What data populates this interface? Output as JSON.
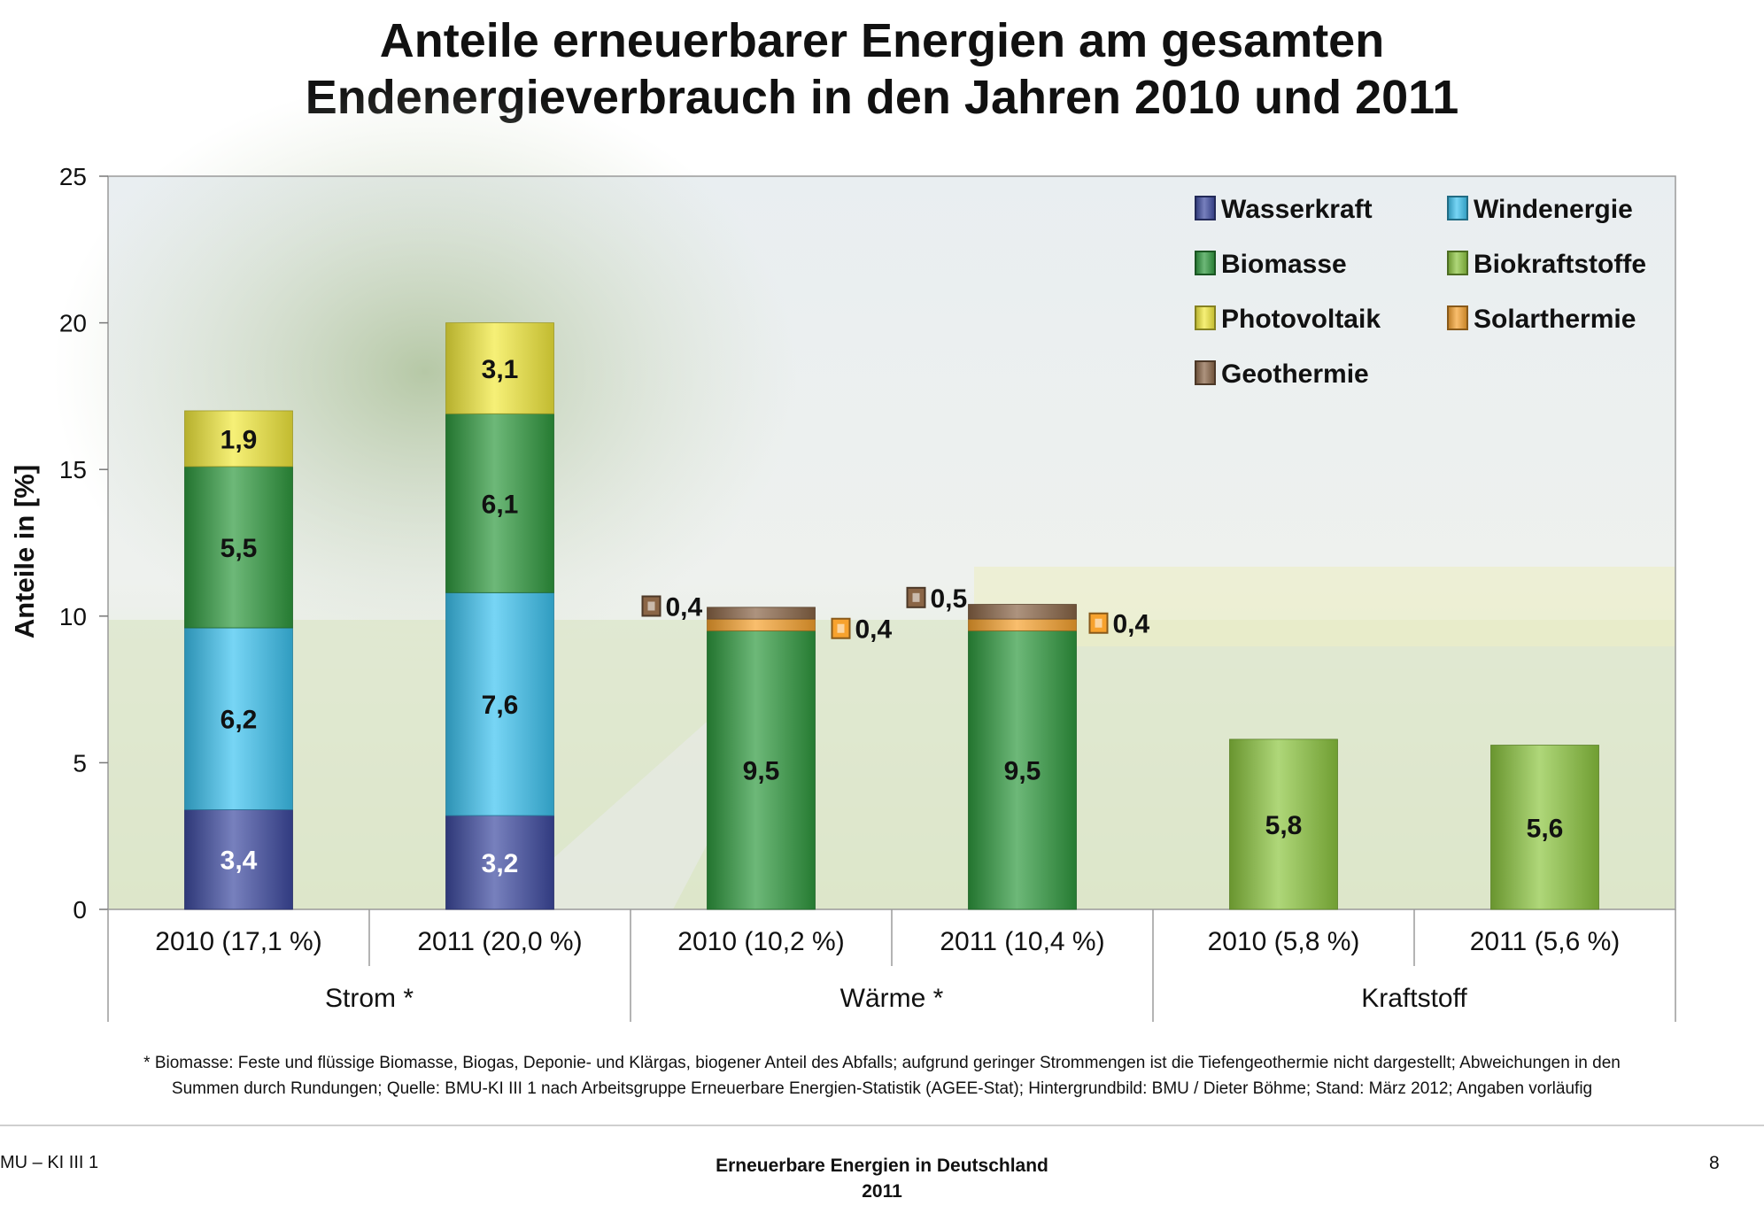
{
  "title": {
    "line1": "Anteile erneuerbarer Energien am gesamten",
    "line2": "Endenergieverbrauch in den Jahren 2010 und 2011"
  },
  "chart_data": {
    "type": "bar",
    "stacked": true,
    "ylabel": "Anteile in [%]",
    "ylim": [
      0,
      25
    ],
    "yticks": [
      0,
      5,
      10,
      15,
      20,
      25
    ],
    "grid": false,
    "legend_position": "top-right",
    "groups": [
      {
        "label": "Strom *",
        "categories": [
          "2010 (17,1 %)",
          "2011 (20,0 %)"
        ]
      },
      {
        "label": "Wärme *",
        "categories": [
          "2010 (10,2 %)",
          "2011 (10,4 %)"
        ]
      },
      {
        "label": "Kraftstoff",
        "categories": [
          "2010 (5,8 %)",
          "2011 (5,6 %)"
        ]
      }
    ],
    "categories": [
      "2010 (17,1 %)",
      "2011 (20,0 %)",
      "2010 (10,2 %)",
      "2011 (10,4 %)",
      "2010 (5,8 %)",
      "2011 (5,6 %)"
    ],
    "series": [
      {
        "name": "Wasserkraft",
        "color": "#3d4aa0",
        "values": [
          3.4,
          3.2,
          0,
          0,
          0,
          0
        ],
        "labels": [
          "3,4",
          "3,2",
          "",
          "",
          "",
          ""
        ]
      },
      {
        "name": "Windenergie",
        "color": "#3cc3f0",
        "values": [
          6.2,
          7.6,
          0,
          0,
          0,
          0
        ],
        "labels": [
          "6,2",
          "7,6",
          "",
          "",
          "",
          ""
        ]
      },
      {
        "name": "Biomasse",
        "color": "#2f9a3e",
        "values": [
          5.5,
          6.1,
          9.5,
          9.5,
          0,
          0
        ],
        "labels": [
          "5,5",
          "6,1",
          "9,5",
          "9,5",
          "",
          ""
        ]
      },
      {
        "name": "Biokraftstoffe",
        "color": "#8cc63f",
        "values": [
          0,
          0,
          0,
          0,
          5.8,
          5.6
        ],
        "labels": [
          "",
          "",
          "",
          "",
          "5,8",
          "5,6"
        ]
      },
      {
        "name": "Photovoltaik",
        "color": "#f2ea3c",
        "values": [
          1.9,
          3.1,
          0,
          0,
          0,
          0
        ],
        "labels": [
          "1,9",
          "3,1",
          "",
          "",
          "",
          ""
        ]
      },
      {
        "name": "Solarthermie",
        "color": "#f7a22e",
        "values": [
          0,
          0,
          0.4,
          0.4,
          0,
          0
        ],
        "labels": [
          "",
          "",
          "0,4",
          "0,4",
          "",
          ""
        ]
      },
      {
        "name": "Geothermie",
        "color": "#8a6546",
        "values": [
          0,
          0,
          0.4,
          0.5,
          0,
          0
        ],
        "labels": [
          "",
          "",
          "0,4",
          "0,5",
          "",
          ""
        ]
      }
    ],
    "legend_order": [
      "Wasserkraft",
      "Windenergie",
      "Biomasse",
      "Biokraftstoffe",
      "Photovoltaik",
      "Solarthermie",
      "Geothermie"
    ]
  },
  "footnote": {
    "line1": "* Biomasse: Feste und flüssige Biomasse, Biogas, Deponie- und Klärgas, biogener Anteil des Abfalls; aufgrund geringer Strommengen ist die Tiefengeothermie nicht dargestellt; Abweichungen in den",
    "line2": "Summen durch Rundungen; Quelle: BMU-KI III 1 nach Arbeitsgruppe Erneuerbare Energien-Statistik (AGEE-Stat); Hintergrundbild: BMU / Dieter Böhme; Stand: März 2012; Angaben vorläufig"
  },
  "footer": {
    "left": "MU – KI III 1",
    "center_line1": "Erneuerbare Energien in Deutschland",
    "center_line2": "2011",
    "page_number": "8"
  }
}
